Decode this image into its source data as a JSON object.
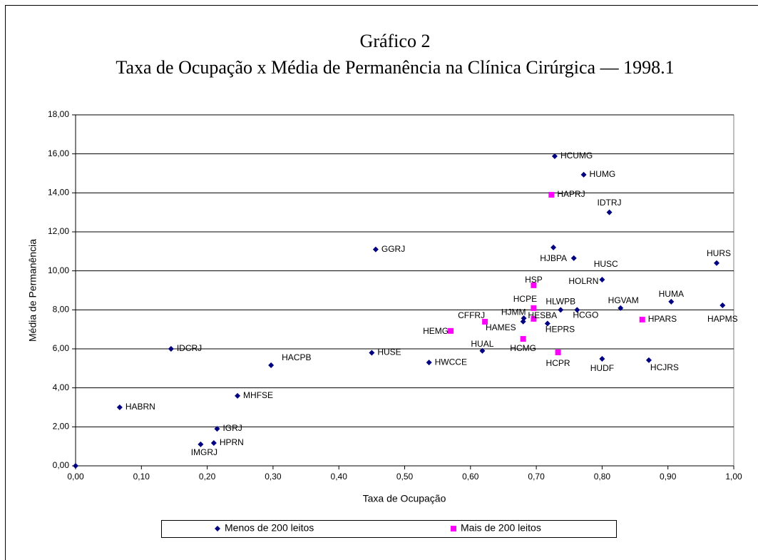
{
  "chart_data": {
    "type": "scatter",
    "title": "Gráfico 2",
    "subtitle": "Taxa de Ocupação x Média de Permanência na Clínica Cirúrgica — 1998.1",
    "x_label": "Taxa de Ocupação",
    "y_label": "Média de Permanência",
    "xlim": [
      0,
      1
    ],
    "ylim": [
      0,
      18
    ],
    "xticks": [
      {
        "value": 0,
        "label": "0,00"
      },
      {
        "value": 0.1,
        "label": "0,10"
      },
      {
        "value": 0.2,
        "label": "0,20"
      },
      {
        "value": 0.3,
        "label": "0,30"
      },
      {
        "value": 0.4,
        "label": "0,40"
      },
      {
        "value": 0.5,
        "label": "0,50"
      },
      {
        "value": 0.6,
        "label": "0,60"
      },
      {
        "value": 0.7,
        "label": "0,70"
      },
      {
        "value": 0.8,
        "label": "0,80"
      },
      {
        "value": 0.9,
        "label": "0,90"
      },
      {
        "value": 1,
        "label": "1,00"
      }
    ],
    "yticks": [
      {
        "value": 0,
        "label": "0,00"
      },
      {
        "value": 2,
        "label": "2,00"
      },
      {
        "value": 4,
        "label": "4,00"
      },
      {
        "value": 6,
        "label": "6,00"
      },
      {
        "value": 8,
        "label": "8,00"
      },
      {
        "value": 10,
        "label": "10,00"
      },
      {
        "value": 12,
        "label": "12,00"
      },
      {
        "value": 14,
        "label": "14,00"
      },
      {
        "value": 16,
        "label": "16,00"
      },
      {
        "value": 18,
        "label": "18,00"
      }
    ],
    "grid": true,
    "legend": "bottom",
    "series": [
      {
        "name": "Menos de 200 leitos",
        "color": "#000080",
        "marker": "diamond",
        "labels": [
          null,
          "HABRN",
          "IDCRJ",
          "IGRJ",
          "HPRN",
          "IMGRJ",
          "MHFSE",
          "HACPB",
          "GGRJ",
          "HUSE",
          "HWCCE",
          "HUAL",
          "HJMM",
          "HAMES",
          "HEPRS",
          "HLWPB",
          "HCGO",
          "HCUMG",
          "HUMG",
          "IDTRJ",
          "HJBPA",
          "HUSC",
          "HOLRN",
          "HGVAM",
          "HUDF",
          "HCJRS",
          "HUMA",
          "HURS",
          "HAPMS"
        ],
        "x": [
          0,
          0.067,
          0.145,
          0.215,
          0.21,
          0.19,
          0.246,
          0.297,
          0.456,
          0.45,
          0.537,
          0.618,
          0.681,
          0.68,
          0.717,
          0.737,
          0.762,
          0.728,
          0.772,
          0.811,
          0.726,
          0.757,
          0.8,
          0.828,
          0.8,
          0.871,
          0.905,
          0.974,
          0.983
        ],
        "values": [
          0,
          3.0,
          6.0,
          1.9,
          1.17,
          1.1,
          3.59,
          5.16,
          11.1,
          5.8,
          5.3,
          5.9,
          7.57,
          7.4,
          7.3,
          8.0,
          8.0,
          15.88,
          14.93,
          13.0,
          11.2,
          10.65,
          9.55,
          8.09,
          5.49,
          5.42,
          8.42,
          10.4,
          8.23
        ]
      },
      {
        "name": "Mais de 200 leitos",
        "color": "#ff00ff",
        "marker": "square",
        "labels": [
          "HAPRJ",
          "HSP",
          "HCPE",
          "HESBA",
          "CFFRJ",
          "HEMG",
          "HCMG",
          "HCPR",
          "HPARS"
        ],
        "x": [
          0.723,
          0.696,
          0.696,
          0.696,
          0.622,
          0.57,
          0.68,
          0.733,
          0.861
        ],
        "values": [
          13.9,
          9.26,
          8.09,
          7.54,
          7.39,
          6.92,
          6.51,
          5.82,
          7.5
        ]
      }
    ]
  }
}
